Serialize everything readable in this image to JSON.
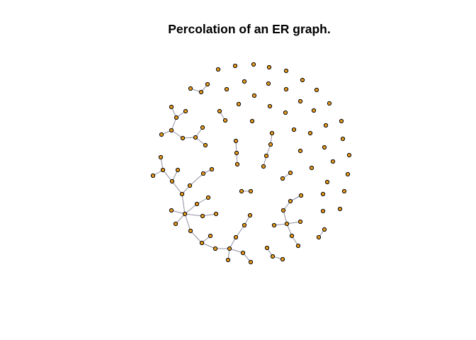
{
  "title": "Percolation of an ER graph.",
  "colors": {
    "background": "#ffffff",
    "vertex_fill": "#e69a1c",
    "vertex_border": "#000000",
    "edge": "#8f8fa3",
    "title": "#000000"
  },
  "graph": {
    "type": "Erdos-Renyi random graph (percolation)",
    "vertex_count": 129,
    "edge_count": 72,
    "components": [
      {
        "id": "giant",
        "vertices": 29
      },
      {
        "id": "right-tree",
        "vertices": 8
      },
      {
        "id": "upper-left-tree",
        "vertices": 10
      },
      {
        "id": "center-chain",
        "vertices": 4
      },
      {
        "id": "small-trees",
        "count": 3,
        "vertices_each": 3
      },
      {
        "id": "pairs",
        "count": 8,
        "vertices_each": 2
      },
      {
        "id": "isolated",
        "vertices": 53
      }
    ]
  }
}
